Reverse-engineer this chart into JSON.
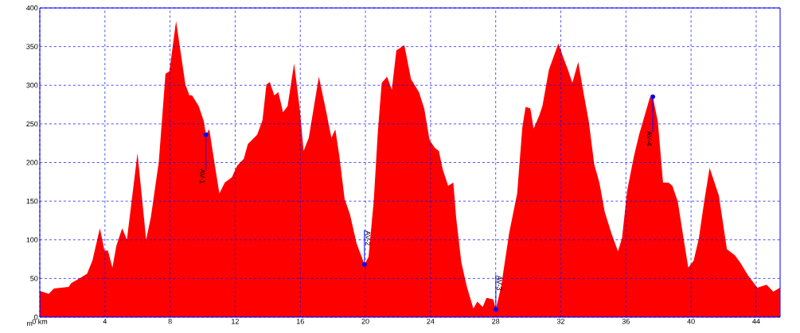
{
  "chart_data": {
    "type": "area",
    "ylabel": "m",
    "color": "#ff0000",
    "x": [
      0,
      0.55,
      0.87,
      1.77,
      1.93,
      2.42,
      2.9,
      3.23,
      3.69,
      3.97,
      4.18,
      4.46,
      4.7,
      5.06,
      5.35,
      6.0,
      6.41,
      6.53,
      6.82,
      7.31,
      7.72,
      7.96,
      8.37,
      8.94,
      9.19,
      9.35,
      9.76,
      10.08,
      10.2,
      10.41,
      10.74,
      11.03,
      11.36,
      11.8,
      12.12,
      12.53,
      12.78,
      13.35,
      13.68,
      13.92,
      14.13,
      14.4,
      14.65,
      14.94,
      15.22,
      15.62,
      15.98,
      16.2,
      16.52,
      17.14,
      17.58,
      17.91,
      18.15,
      18.4,
      18.72,
      19.05,
      19.46,
      19.94,
      20.19,
      20.51,
      20.76,
      21.0,
      21.33,
      21.62,
      21.9,
      22.39,
      22.8,
      23.29,
      23.61,
      23.94,
      24.26,
      24.51,
      24.75,
      25.08,
      25.4,
      25.57,
      25.89,
      26.22,
      26.63,
      26.87,
      27.2,
      27.44,
      27.85,
      28.01,
      28.34,
      28.83,
      29.32,
      29.64,
      29.84,
      30.13,
      30.33,
      30.66,
      30.87,
      31.27,
      31.85,
      32.17,
      32.42,
      32.71,
      33.07,
      33.39,
      33.72,
      34.05,
      34.37,
      34.7,
      35.1,
      35.51,
      35.76,
      36.08,
      36.49,
      36.82,
      37.14,
      37.47,
      37.65,
      37.96,
      38.28,
      38.61,
      38.85,
      39.18,
      39.59,
      39.83,
      40.16,
      40.48,
      40.81,
      41.14,
      41.71,
      42.2,
      42.69,
      43.01,
      43.5,
      44.07,
      44.64,
      45.05,
      45.46
    ],
    "values": [
      34,
      30,
      37,
      39,
      44,
      50,
      56,
      73,
      115,
      86,
      86,
      64,
      92,
      115,
      100,
      212,
      126,
      100,
      129,
      201,
      315,
      318,
      383,
      301,
      287,
      287,
      273,
      253,
      236,
      243,
      198,
      160,
      174,
      181,
      196,
      205,
      224,
      236,
      255,
      301,
      304,
      287,
      291,
      265,
      273,
      328,
      267,
      215,
      232,
      311,
      267,
      232,
      243,
      208,
      153,
      133,
      95,
      68,
      78,
      150,
      239,
      303,
      311,
      294,
      345,
      352,
      308,
      291,
      270,
      229,
      219,
      215,
      191,
      170,
      174,
      129,
      71,
      40,
      11,
      20,
      13,
      25,
      23,
      10,
      40,
      109,
      160,
      246,
      272,
      270,
      244,
      260,
      273,
      320,
      354,
      335,
      321,
      303,
      330,
      291,
      253,
      198,
      174,
      136,
      109,
      85,
      102,
      164,
      208,
      237,
      260,
      284,
      285,
      253,
      174,
      174,
      170,
      150,
      95,
      64,
      73,
      102,
      150,
      193,
      157,
      88,
      80,
      71,
      54,
      38,
      42,
      33,
      38
    ],
    "xlim": [
      0,
      45.47
    ],
    "ylim": [
      0,
      400
    ],
    "xticks": [
      {
        "value": 0,
        "label": "0 km"
      },
      4,
      8,
      12,
      16,
      20,
      24,
      28,
      32,
      36,
      40,
      44
    ],
    "yticks": [
      0,
      50,
      100,
      150,
      200,
      250,
      300,
      350,
      400
    ],
    "grid": true,
    "annotations": [
      {
        "text": "AV-1",
        "x": 10.2,
        "y": 236
      },
      {
        "text": "AV-2",
        "x": 19.94,
        "y": 68
      },
      {
        "text": "AV-3",
        "x": 28.01,
        "y": 10
      },
      {
        "text": "AV-4",
        "x": 37.65,
        "y": 285
      }
    ]
  }
}
